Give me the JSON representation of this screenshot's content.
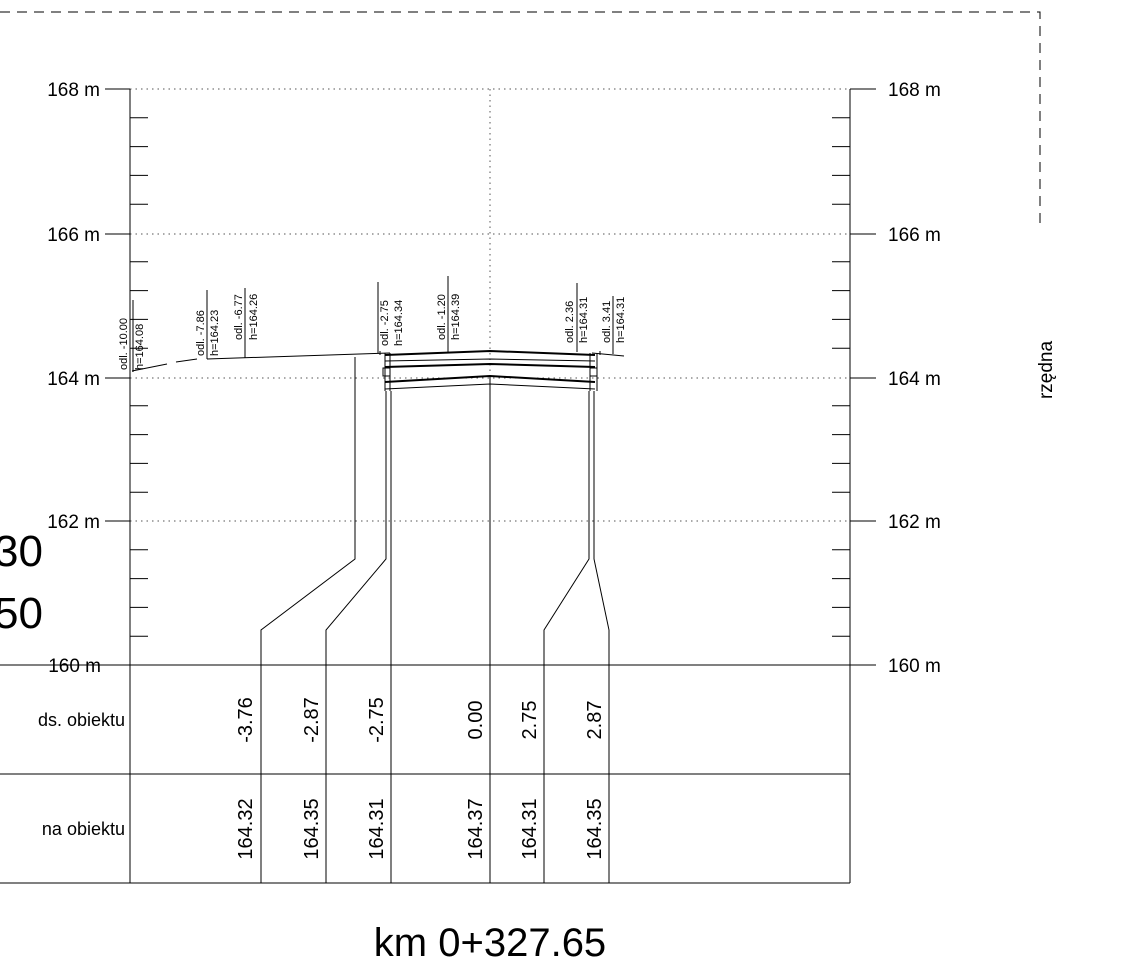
{
  "elevation_axis": {
    "labels": [
      "168 m",
      "166 m",
      "164 m",
      "162 m",
      "160 m"
    ],
    "title": "rzędna"
  },
  "partial_left_text": {
    "line1": "30",
    "line2": "50"
  },
  "points": [
    {
      "odl": "odl. -10.00",
      "h": "h=164.08"
    },
    {
      "odl": "odl. -7.86",
      "h": "h=164.23"
    },
    {
      "odl": "odl. -6.77",
      "h": "h=164.26"
    },
    {
      "odl": "odl. -2.75",
      "h": "h=164.34"
    },
    {
      "odl": "odl. -1.20",
      "h": "h=164.39"
    },
    {
      "odl": "odl. 2.36",
      "h": "h=164.31"
    },
    {
      "odl": "odl. 3.41",
      "h": "h=164.31"
    }
  ],
  "table": {
    "row1_label": "ds. obiektu",
    "row2_label": "na obiektu",
    "row1_values": [
      "-3.76",
      "-2.87",
      "-2.75",
      "0.00",
      "2.75",
      "2.87"
    ],
    "row2_values": [
      "164.32",
      "164.35",
      "164.31",
      "164.37",
      "164.31",
      "164.35"
    ]
  },
  "station": "km 0+327.65"
}
